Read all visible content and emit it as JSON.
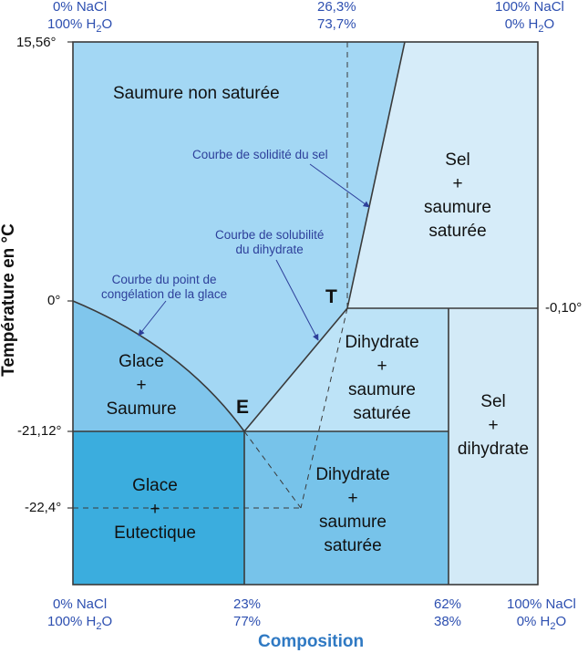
{
  "corners": {
    "top_left": [
      "0% NaCl",
      "100% H2O"
    ],
    "top_mid": [
      "26,3%",
      "73,7%"
    ],
    "top_right": [
      "100% NaCl",
      "0% H2O"
    ],
    "bottom_left": [
      "0% NaCl",
      "100% H2O"
    ],
    "bottom_mid1": [
      "23%",
      "77%"
    ],
    "bottom_mid2": [
      "62%",
      "38%"
    ],
    "bottom_right": [
      "100% NaCl",
      "0% H2O"
    ]
  },
  "y_ticks": {
    "t_top": "15,56°",
    "t_zero": "0°",
    "t_right": "-0,10°",
    "t_eut": "-21,12°",
    "t_22": "-22,4°"
  },
  "axis": {
    "xlabel": "Composition",
    "ylabel": "Température en °C"
  },
  "regions": {
    "saumure": [
      "Saumure non saturée"
    ],
    "sel_saumure": [
      "Sel",
      "+",
      "saumure",
      "saturée"
    ],
    "glace_saumure": [
      "Glace",
      "+",
      "Saumure"
    ],
    "dihydrate_upper": [
      "Dihydrate",
      "+",
      "saumure",
      "saturée"
    ],
    "sel_dihydrate": [
      "Sel",
      "+",
      "dihydrate"
    ],
    "glace_eutectique": [
      "Glace",
      "+",
      "Eutectique"
    ],
    "dihydrate_lower": [
      "Dihydrate",
      "+",
      "saumure",
      "saturée"
    ]
  },
  "annotations": {
    "solidite": [
      "Courbe de solidité du sel"
    ],
    "solubilite": [
      "Courbe de solubilité",
      "du dihydrate"
    ],
    "congelation": [
      "Courbe du point de",
      "congélation de la glace"
    ]
  },
  "points": {
    "T": "T",
    "E": "E"
  },
  "colors": {
    "brine": "#a3d7f4",
    "salt_brine": "#d6ecf9",
    "ice_brine": "#80c6ec",
    "dihydrate_upper": "#bde3f7",
    "salt_dihydrate": "#d3eaf7",
    "ice_eutectic": "#3badde",
    "dihydrate_lower": "#77c3ea",
    "annotation": "#2d3f9a",
    "axis_blue": "#2f79c3"
  }
}
